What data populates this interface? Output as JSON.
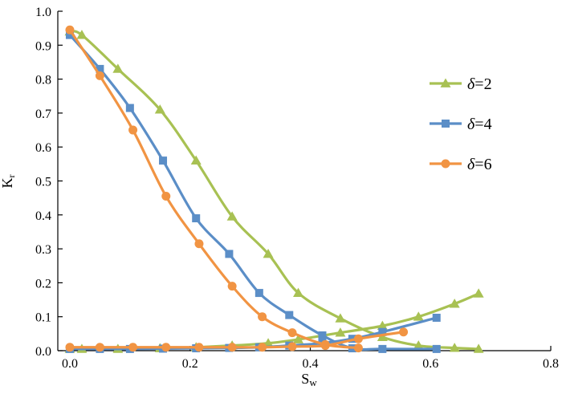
{
  "chart_data": {
    "type": "line",
    "xlabel": "S",
    "xlabel_sub": "w",
    "ylabel": "K",
    "ylabel_sub": "r",
    "xlim": [
      -0.02,
      0.8
    ],
    "ylim": [
      0.0,
      1.0
    ],
    "xticks": [
      "0.0",
      "0.2",
      "0.4",
      "0.6",
      "0.8"
    ],
    "xtick_values": [
      0.0,
      0.2,
      0.4,
      0.6,
      0.8
    ],
    "yticks": [
      "0.0",
      "0.1",
      "0.2",
      "0.3",
      "0.4",
      "0.5",
      "0.6",
      "0.7",
      "0.8",
      "0.9",
      "1.0"
    ],
    "ytick_values": [
      0.0,
      0.1,
      0.2,
      0.3,
      0.4,
      0.5,
      0.6,
      0.7,
      0.8,
      0.9,
      1.0
    ],
    "grid": false,
    "legend_position": "right",
    "series": [
      {
        "name": "δ=2",
        "legend_symbol": "δ",
        "legend_rest": "=2",
        "color": "#a8c153",
        "marker": "triangle",
        "curves": [
          {
            "x": [
              0.0,
              0.02,
              0.08,
              0.15,
              0.21,
              0.27,
              0.33,
              0.38,
              0.45,
              0.52,
              0.58,
              0.64,
              0.68
            ],
            "y": [
              0.94,
              0.93,
              0.83,
              0.71,
              0.56,
              0.395,
              0.285,
              0.17,
              0.095,
              0.04,
              0.015,
              0.008,
              0.005
            ]
          },
          {
            "x": [
              0.0,
              0.02,
              0.08,
              0.15,
              0.21,
              0.27,
              0.33,
              0.38,
              0.45,
              0.52,
              0.58,
              0.64,
              0.68
            ],
            "y": [
              0.005,
              0.005,
              0.005,
              0.007,
              0.01,
              0.015,
              0.022,
              0.033,
              0.053,
              0.073,
              0.1,
              0.138,
              0.168
            ]
          }
        ]
      },
      {
        "name": "δ=4",
        "legend_symbol": "δ",
        "legend_rest": "=4",
        "color": "#5b8ec7",
        "marker": "square",
        "curves": [
          {
            "x": [
              0.0,
              0.05,
              0.1,
              0.155,
              0.21,
              0.265,
              0.315,
              0.365,
              0.42,
              0.47,
              0.52,
              0.61
            ],
            "y": [
              0.93,
              0.83,
              0.715,
              0.56,
              0.39,
              0.285,
              0.17,
              0.105,
              0.045,
              0.007,
              0.005,
              0.005
            ]
          },
          {
            "x": [
              0.0,
              0.05,
              0.1,
              0.155,
              0.21,
              0.265,
              0.315,
              0.365,
              0.42,
              0.47,
              0.52,
              0.61
            ],
            "y": [
              0.005,
              0.005,
              0.005,
              0.006,
              0.007,
              0.008,
              0.01,
              0.015,
              0.022,
              0.035,
              0.055,
              0.097
            ]
          }
        ]
      },
      {
        "name": "δ=6",
        "legend_symbol": "δ",
        "legend_rest": "=6",
        "color": "#f19443",
        "marker": "circle",
        "curves": [
          {
            "x": [
              0.0,
              0.05,
              0.105,
              0.16,
              0.215,
              0.27,
              0.32,
              0.37,
              0.425,
              0.48
            ],
            "y": [
              0.945,
              0.81,
              0.65,
              0.455,
              0.315,
              0.19,
              0.1,
              0.053,
              0.018,
              0.008
            ]
          },
          {
            "x": [
              0.0,
              0.05,
              0.105,
              0.16,
              0.215,
              0.27,
              0.32,
              0.37,
              0.425,
              0.48,
              0.555
            ],
            "y": [
              0.01,
              0.01,
              0.01,
              0.01,
              0.01,
              0.01,
              0.01,
              0.012,
              0.015,
              0.035,
              0.055
            ]
          }
        ]
      }
    ]
  }
}
